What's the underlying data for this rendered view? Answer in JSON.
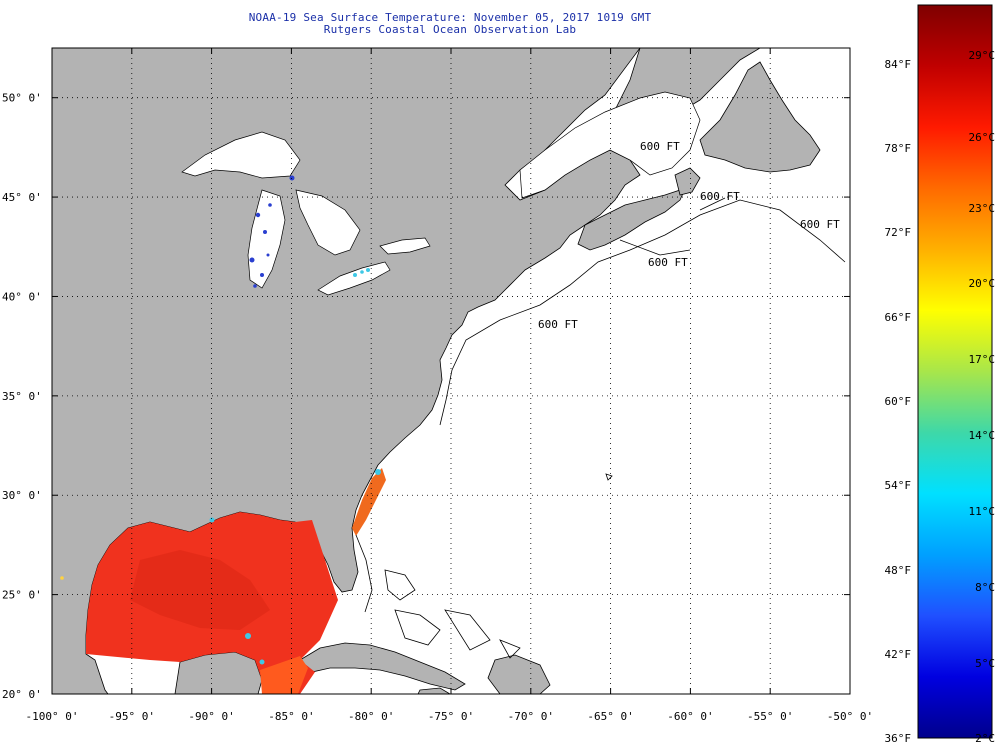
{
  "header": {
    "title": "NOAA-19 Sea Surface Temperature:  November 05, 2017 1019 GMT",
    "subtitle": "Rutgers Coastal Ocean Observation Lab"
  },
  "map": {
    "lon_ticks": [
      "-100° 0'",
      "-95° 0'",
      "-90° 0'",
      "-85° 0'",
      "-80° 0'",
      "-75° 0'",
      "-70° 0'",
      "-65° 0'",
      "-60° 0'",
      "-55° 0'",
      "-50° 0'"
    ],
    "lat_ticks": [
      "50° 0'",
      "45° 0'",
      "40° 0'",
      "35° 0'",
      "30° 0'",
      "25° 0'",
      "20° 0'"
    ],
    "lon_range": [
      -100,
      -50
    ],
    "lat_range": [
      20,
      52.5
    ],
    "isobath_labels": [
      "600 FT",
      "600 FT",
      "600 FT",
      "600 FT",
      "600 FT"
    ],
    "colors": {
      "land": "#b3b3b3",
      "ocean_no_data": "#ffffff",
      "sst_gulf": "#f0321e",
      "sst_cool_patch": "#3fc8e6",
      "lake_data": "#2a3fd0",
      "grid": "#000000",
      "title_text": "#1a2fa8"
    }
  },
  "colorbar": {
    "fahrenheit_labels": [
      "84°F",
      "78°F",
      "72°F",
      "66°F",
      "60°F",
      "54°F",
      "48°F",
      "42°F",
      "36°F"
    ],
    "celsius_labels": [
      "29°C",
      "26°C",
      "23°C",
      "20°C",
      "17°C",
      "14°C",
      "11°C",
      "8°C",
      "5°C",
      "2°C"
    ],
    "scale_colors": [
      "#7f0000",
      "#c00000",
      "#ff1a00",
      "#ff6a00",
      "#ffb000",
      "#ffff00",
      "#a8e64a",
      "#3ed8a8",
      "#00e0ff",
      "#00a0ff",
      "#2050ff",
      "#0000e0",
      "#00008c"
    ]
  }
}
